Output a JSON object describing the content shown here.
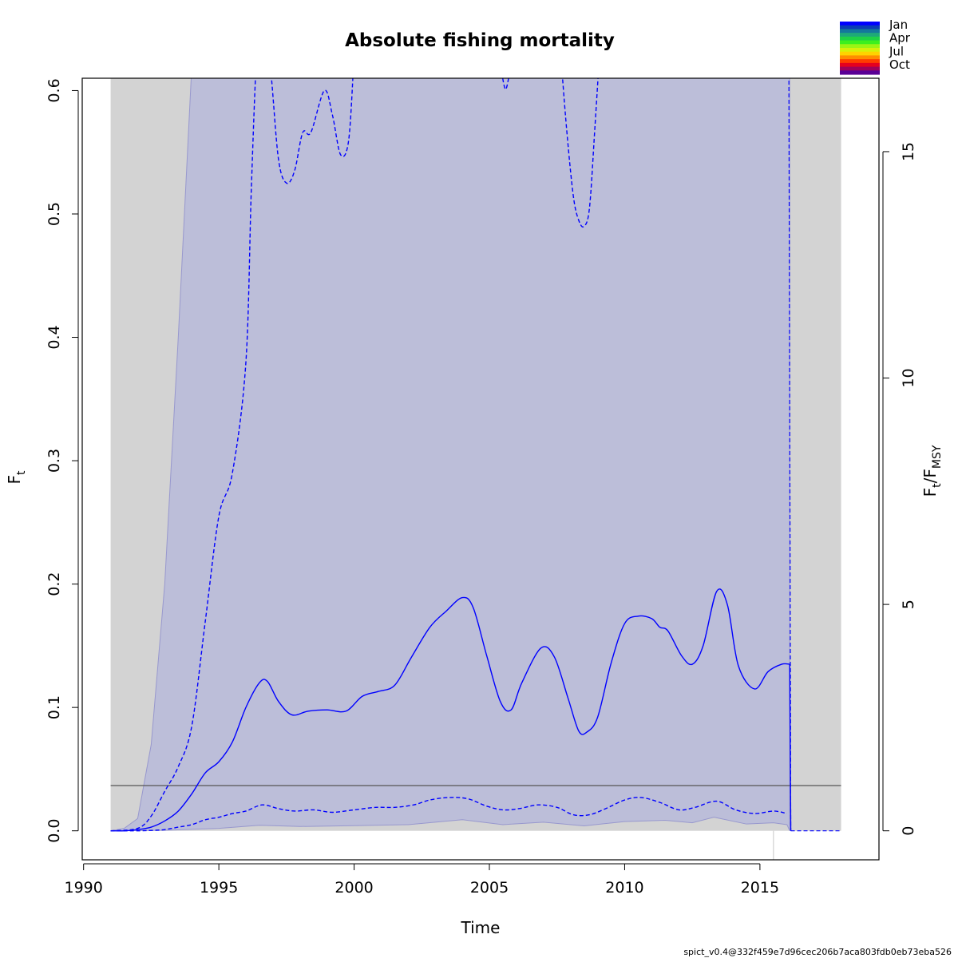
{
  "chart_data": {
    "type": "line",
    "title": "Absolute fishing mortality",
    "xlabel": "Time",
    "ylabel_main": "F",
    "ylabel_sub": "t",
    "ylabel_right_main_a": "F",
    "ylabel_right_sub_a": "t",
    "ylabel_right_slash": "/F",
    "ylabel_right_sub_b": "MSY",
    "xlim": [
      1989.95,
      2019.4
    ],
    "ylim": [
      -0.0235,
      0.61
    ],
    "x_ticks": [
      "1990",
      "1995",
      "2000",
      "2005",
      "2010",
      "2015"
    ],
    "y_ticks": [
      "0.0",
      "0.1",
      "0.2",
      "0.3",
      "0.4",
      "0.5",
      "0.6"
    ],
    "y2_ticks": [
      "0",
      "5",
      "10",
      "15"
    ],
    "y2_scale_factor": 0.0367,
    "reference_line_Fmsy": 0.0367,
    "grey_band_ranges": [
      [
        1991.0,
        2016.1
      ],
      [
        2016.1,
        2018.0
      ]
    ],
    "year_marker_line": 2015.5,
    "series": [
      {
        "name": "F_t estimate",
        "x": [
          1991.0,
          1991.5,
          1992.0,
          1992.5,
          1993.0,
          1993.5,
          1994.0,
          1994.5,
          1995.0,
          1995.5,
          1996.0,
          1996.5,
          1996.8,
          1997.2,
          1997.7,
          1998.3,
          1999.0,
          1999.7,
          2000.3,
          2000.9,
          2001.5,
          2002.1,
          2002.8,
          2003.4,
          2004.0,
          2004.4,
          2004.9,
          2005.4,
          2005.8,
          2006.2,
          2006.9,
          2007.4,
          2007.9,
          2008.3,
          2008.6,
          2009.0,
          2009.5,
          2010.0,
          2010.5,
          2011.0,
          2011.3,
          2011.6,
          2012.1,
          2012.5,
          2012.9,
          2013.4,
          2013.8,
          2014.2,
          2014.8,
          2015.3,
          2015.8,
          2016.1
        ],
        "values": [
          0.0,
          0.0,
          0.001,
          0.003,
          0.008,
          0.016,
          0.03,
          0.047,
          0.056,
          0.072,
          0.1,
          0.12,
          0.121,
          0.105,
          0.094,
          0.097,
          0.098,
          0.097,
          0.109,
          0.113,
          0.118,
          0.14,
          0.165,
          0.178,
          0.189,
          0.181,
          0.142,
          0.105,
          0.098,
          0.12,
          0.148,
          0.141,
          0.108,
          0.081,
          0.08,
          0.092,
          0.136,
          0.168,
          0.174,
          0.172,
          0.165,
          0.162,
          0.142,
          0.135,
          0.15,
          0.194,
          0.183,
          0.134,
          0.115,
          0.129,
          0.135,
          0.135
        ]
      },
      {
        "name": "upper CI",
        "x": [
          1991.0,
          1992.0,
          1992.5,
          1993.0,
          1993.5,
          1994.0,
          1994.5,
          1995.0,
          1995.5,
          1996.0,
          1996.2,
          1996.4,
          1996.6,
          1996.9,
          1997.2,
          1997.5,
          1997.8,
          1998.1,
          1998.4,
          1998.9,
          1999.2,
          1999.5,
          1999.8,
          2000.0
        ],
        "values": [
          0.0,
          0.002,
          0.012,
          0.032,
          0.052,
          0.085,
          0.17,
          0.255,
          0.29,
          0.38,
          0.52,
          0.63,
          0.66,
          0.62,
          0.545,
          0.525,
          0.535,
          0.566,
          0.566,
          0.6,
          0.58,
          0.548,
          0.56,
          0.63
        ]
      },
      {
        "name": "upper CI (2005)",
        "x": [
          2005.45,
          2005.6,
          2005.75
        ],
        "values": [
          0.615,
          0.601,
          0.615
        ]
      },
      {
        "name": "upper CI (2008)",
        "x": [
          2007.6,
          2007.85,
          2008.1,
          2008.3,
          2008.5,
          2008.7,
          2008.9,
          2009.1
        ],
        "values": [
          0.64,
          0.57,
          0.515,
          0.495,
          0.49,
          0.505,
          0.57,
          0.64
        ]
      },
      {
        "name": "lower CI",
        "x": [
          1991.0,
          1992.0,
          1992.5,
          1993.0,
          1993.5,
          1994.0,
          1994.5,
          1995.0,
          1995.5,
          1996.0,
          1996.6,
          1997.2,
          1997.8,
          1998.5,
          1999.2,
          2000.0,
          2000.8,
          2001.5,
          2002.2,
          2002.8,
          2003.5,
          2004.2,
          2004.9,
          2005.5,
          2006.1,
          2006.8,
          2007.5,
          2008.1,
          2008.7,
          2009.3,
          2010.0,
          2010.6,
          2011.3,
          2012.0,
          2012.6,
          2013.4,
          2014.1,
          2014.8,
          2015.5,
          2016.0
        ],
        "values": [
          0.0,
          0.0,
          0.0003,
          0.001,
          0.003,
          0.005,
          0.009,
          0.011,
          0.014,
          0.016,
          0.021,
          0.018,
          0.016,
          0.017,
          0.015,
          0.017,
          0.019,
          0.019,
          0.021,
          0.025,
          0.027,
          0.026,
          0.02,
          0.017,
          0.018,
          0.021,
          0.019,
          0.013,
          0.013,
          0.018,
          0.025,
          0.027,
          0.023,
          0.017,
          0.019,
          0.024,
          0.017,
          0.014,
          0.016,
          0.014
        ]
      }
    ],
    "outer_band_lower": {
      "x": [
        1991.0,
        1993.0,
        1995.0,
        1996.5,
        1998.0,
        2000.0,
        2002.0,
        2004.0,
        2005.5,
        2007.0,
        2008.5,
        2010.0,
        2011.5,
        2012.5,
        2013.3,
        2014.5,
        2015.5,
        2016.0
      ],
      "values": [
        0.0,
        0.0004,
        0.002,
        0.0045,
        0.0035,
        0.0042,
        0.005,
        0.009,
        0.005,
        0.007,
        0.004,
        0.0075,
        0.0085,
        0.0065,
        0.011,
        0.0055,
        0.0065,
        0.005
      ]
    },
    "outer_band_upper": {
      "x": [
        1991.0,
        1991.5,
        1992.0,
        1992.5,
        1993.0,
        1993.5,
        1994.0
      ],
      "values": [
        0.0,
        0.002,
        0.01,
        0.07,
        0.2,
        0.4,
        0.62
      ]
    },
    "legend": {
      "placement": "top-right",
      "entries": [
        "Jan",
        "Apr",
        "Jul",
        "Oct"
      ],
      "colors": [
        "#0000ff",
        "#0a3cb4",
        "#14789b",
        "#1eaa78",
        "#1ed246",
        "#3cf01e",
        "#9bf514",
        "#d7f00a",
        "#ffd200",
        "#ff8c00",
        "#ff3c00",
        "#e6001e",
        "#a0005a",
        "#5a0096"
      ]
    },
    "colors": {
      "line": "#0000ff",
      "ci_band": "#bcbed9",
      "outer_band_edge": "#9898ce",
      "grey_band": "#d3d3d3",
      "ref_line": "#555555"
    },
    "footer": "spict_v0.4@332f459e7d96cec206b7aca803fdb0eb73eba526"
  }
}
